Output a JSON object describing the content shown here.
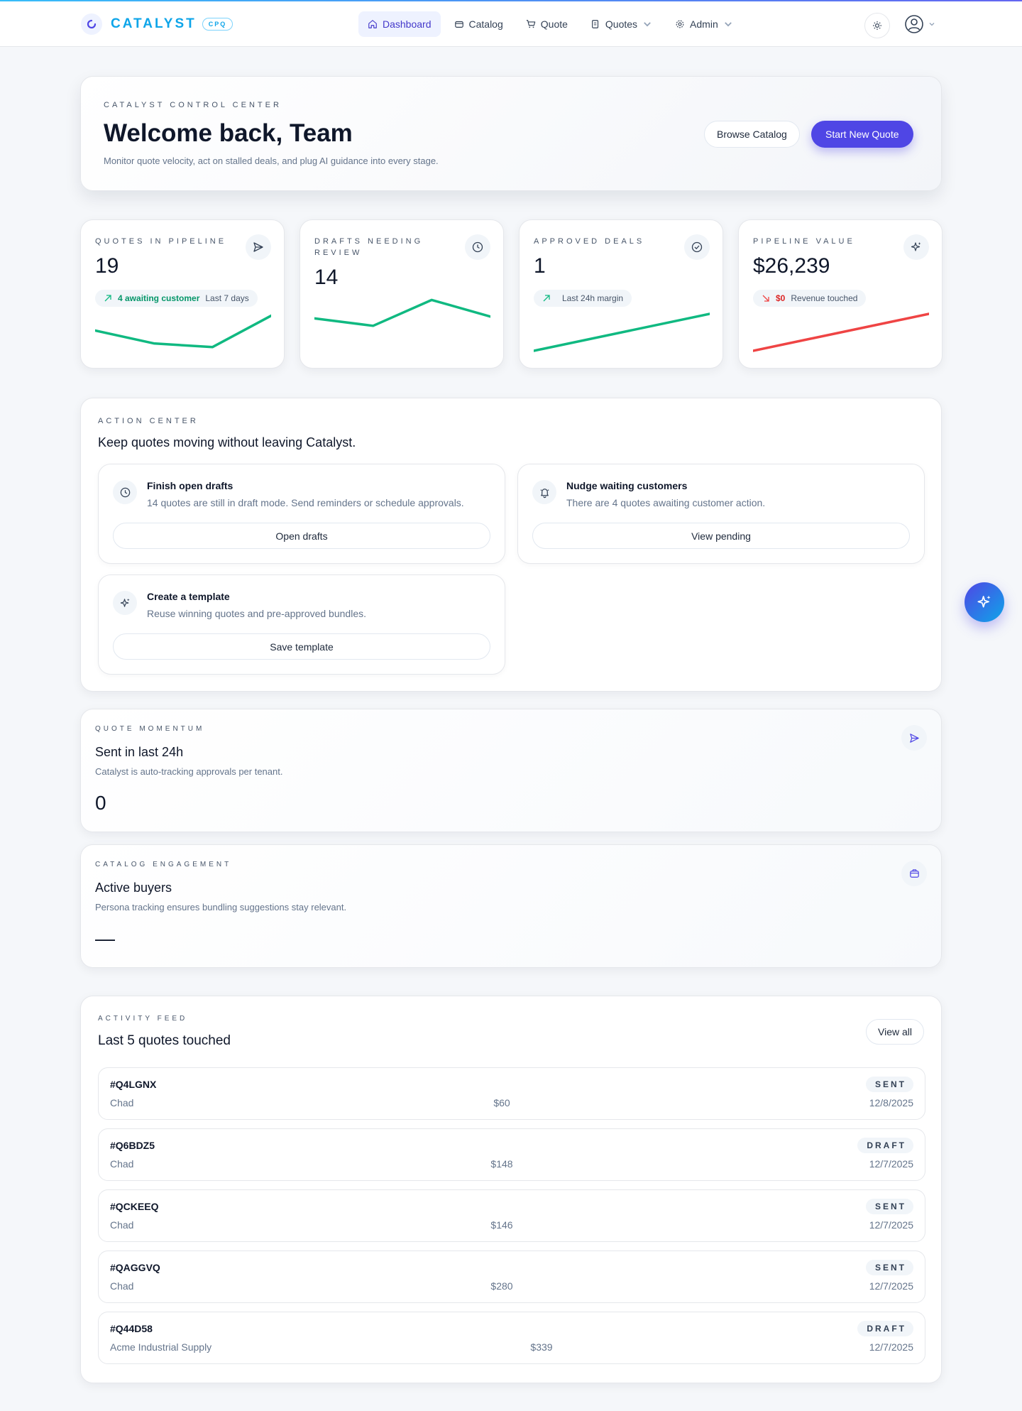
{
  "brand": {
    "name": "CATALYST",
    "badge": "CPQ"
  },
  "nav": {
    "items": [
      {
        "label": "Dashboard",
        "icon": "home-icon",
        "active": true
      },
      {
        "label": "Catalog",
        "icon": "box-icon"
      },
      {
        "label": "Quote",
        "icon": "cart-icon"
      },
      {
        "label": "Quotes",
        "icon": "documents-icon",
        "dropdown": true
      },
      {
        "label": "Admin",
        "icon": "gear-icon",
        "dropdown": true
      }
    ]
  },
  "hero": {
    "eyebrow": "Catalyst Control Center",
    "title": "Welcome back, Team",
    "subtitle": "Monitor quote velocity, act on stalled deals, and plug AI guidance into every stage.",
    "browse_label": "Browse Catalog",
    "start_label": "Start New Quote"
  },
  "stats": [
    {
      "label": "Quotes in pipeline",
      "value": "19",
      "icon": "send-icon",
      "pill_accent": "4 awaiting customer",
      "pill_text": "Last 7 days",
      "trend": "up",
      "spark": [
        0.55,
        0.2,
        0.1,
        0.95
      ],
      "spark_color": "#10b981"
    },
    {
      "label": "Drafts needing review",
      "value": "14",
      "icon": "clock-icon",
      "spark": [
        0.3,
        0.1,
        0.8,
        0.35
      ],
      "spark_color": "#10b981"
    },
    {
      "label": "Approved deals",
      "value": "1",
      "icon": "check-circle-icon",
      "pill_accent": "",
      "pill_text": "Last 24h margin",
      "trend": "up",
      "spark": [
        0.0,
        1.0
      ],
      "spark_color": "#10b981"
    },
    {
      "label": "Pipeline value",
      "value": "$26,239",
      "icon": "sparkles-icon",
      "pill_accent": "$0",
      "pill_text": "Revenue touched",
      "trend": "down",
      "spark": [
        0.0,
        1.0
      ],
      "spark_color": "#ef4444"
    }
  ],
  "action_center": {
    "eyebrow": "Action Center",
    "title": "Keep quotes moving without leaving Catalyst.",
    "tasks": [
      {
        "title": "Finish open drafts",
        "desc": "14 quotes are still in draft mode. Send reminders or schedule approvals.",
        "button": "Open drafts",
        "icon": "clock-icon"
      },
      {
        "title": "Nudge waiting customers",
        "desc": "There are 4 quotes awaiting customer action.",
        "button": "View pending",
        "icon": "bell-icon"
      },
      {
        "title": "Create a template",
        "desc": "Reuse winning quotes and pre-approved bundles.",
        "button": "Save template",
        "icon": "sparkles-icon"
      }
    ]
  },
  "momentum": {
    "eyebrow": "Quote Momentum",
    "title": "Sent in last 24h",
    "subtitle": "Catalyst is auto-tracking approvals per tenant.",
    "value": "0"
  },
  "engagement": {
    "eyebrow": "Catalog Engagement",
    "title": "Active buyers",
    "subtitle": "Persona tracking ensures bundling suggestions stay relevant.",
    "value": "—"
  },
  "feed": {
    "eyebrow": "Activity Feed",
    "title": "Last 5 quotes touched",
    "view_all": "View all",
    "rows": [
      {
        "id": "#Q4LGNX",
        "customer": "Chad",
        "amount": "$60",
        "status": "SENT",
        "date": "12/8/2025"
      },
      {
        "id": "#Q6BDZ5",
        "customer": "Chad",
        "amount": "$148",
        "status": "DRAFT",
        "date": "12/7/2025"
      },
      {
        "id": "#QCKEEQ",
        "customer": "Chad",
        "amount": "$146",
        "status": "SENT",
        "date": "12/7/2025"
      },
      {
        "id": "#QAGGVQ",
        "customer": "Chad",
        "amount": "$280",
        "status": "SENT",
        "date": "12/7/2025"
      },
      {
        "id": "#Q44D58",
        "customer": "Acme Industrial Supply",
        "amount": "$339",
        "status": "DRAFT",
        "date": "12/7/2025"
      }
    ]
  },
  "colors": {
    "accent": "#4f46e5",
    "brand": "#0ea5e9",
    "positive": "#10b981",
    "negative": "#ef4444"
  }
}
